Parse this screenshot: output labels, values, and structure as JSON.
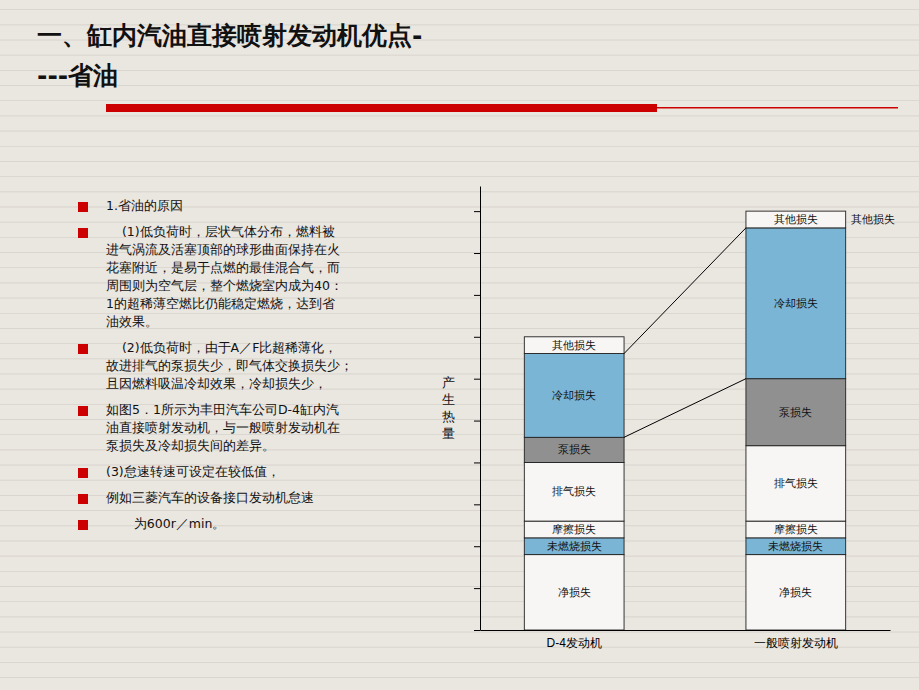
{
  "chart_data": {
    "type": "bar",
    "stacked": true,
    "title": "一、缸内汽油直接喷射发动机优点-\n---省油",
    "ylabel": "产\n生\n热\n量",
    "categories": [
      "D-4发动机",
      "一般喷射发动机"
    ],
    "series": [
      {
        "name": "净损失",
        "color": "#f8f6f4",
        "values": [
          9,
          9
        ]
      },
      {
        "name": "未燃烧损失",
        "color": "#7ab5d5",
        "values": [
          2,
          2
        ]
      },
      {
        "name": "摩擦损失",
        "color": "#f8f6f4",
        "values": [
          2,
          2
        ]
      },
      {
        "name": "排气损失",
        "color": "#f8f6f4",
        "values": [
          7,
          9
        ]
      },
      {
        "name": "泵损失",
        "color": "#909090",
        "values": [
          3,
          8
        ]
      },
      {
        "name": "冷却损失",
        "color": "#7ab5d5",
        "values": [
          10,
          18
        ]
      },
      {
        "name": "其他损失",
        "color": "#f8f6f4",
        "values": [
          2,
          2
        ]
      }
    ],
    "ylim": [
      0,
      53
    ],
    "yticks": [
      0,
      5,
      10,
      15,
      20,
      25,
      30,
      35,
      40,
      45,
      50
    ],
    "tick_labels": "x",
    "grid": false,
    "legend": false,
    "annotations": [
      "1.省油的原因",
      "    (1)低负荷时，层状气体分布，燃料被\n进气涡流及活塞顶部的球形曲面保持在火\n花塞附近，是易于点燃的最佳混合气，而\n周围则为空气层，整个燃烧室内成为40：\n1的超稀薄空燃比仍能稳定燃烧，达到省\n油效果。",
      "    (2)低负荷时，由于A／F比超稀薄化，\n故进排气的泵损失少，即气体交换损失少；\n且因燃料吸温冷却效果，冷却损失少，",
      "如图5．1所示为丰田汽车公司D-4缸内汽\n油直接喷射发动机，与一般喷射发动机在\n泵损失及冷却损失间的差异。",
      "(3)怠速转速可设定在较低值，",
      "例如三菱汽车的设备接口发动机怠速",
      "       为600r／min。",
      "其他损失"
    ]
  }
}
